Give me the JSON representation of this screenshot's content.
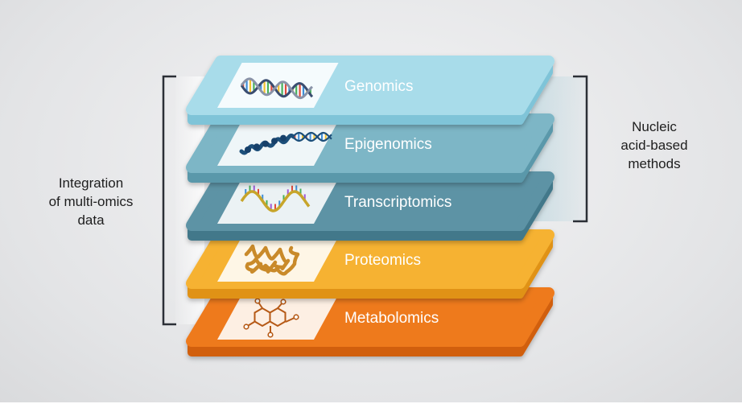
{
  "layers": [
    {
      "id": "genomics",
      "label": "Genomics",
      "top": "#a8dcea",
      "side": "#7fc4d8",
      "icon": "dna-double-helix-icon",
      "icon_color": "#3a4e70"
    },
    {
      "id": "epigenomics",
      "label": "Epigenomics",
      "top": "#7db6c6",
      "side": "#5a98aa",
      "icon": "chromatin-fiber-icon",
      "icon_color": "#1f4f7a"
    },
    {
      "id": "transcriptomics",
      "label": "Transcriptomics",
      "top": "#5d93a5",
      "side": "#43788a",
      "icon": "rna-strand-icon",
      "icon_color": "#c7a52a"
    },
    {
      "id": "proteomics",
      "label": "Proteomics",
      "top": "#f6b230",
      "side": "#e09218",
      "icon": "protein-fold-icon",
      "icon_color": "#c98a2a"
    },
    {
      "id": "metabolomics",
      "label": "Metabolomics",
      "top": "#ee7a1e",
      "side": "#d15f10",
      "icon": "molecule-structure-icon",
      "icon_color": "#b65a18"
    }
  ],
  "left_label": {
    "lines": [
      "Integration",
      "of multi-omics",
      "data"
    ]
  },
  "right_label": {
    "lines": [
      "Nucleic",
      "acid-based",
      "methods"
    ]
  },
  "colors": {
    "bracket": "#2b2f36",
    "label_text": "#ffffff",
    "annotation_text": "#1e1e1e"
  }
}
